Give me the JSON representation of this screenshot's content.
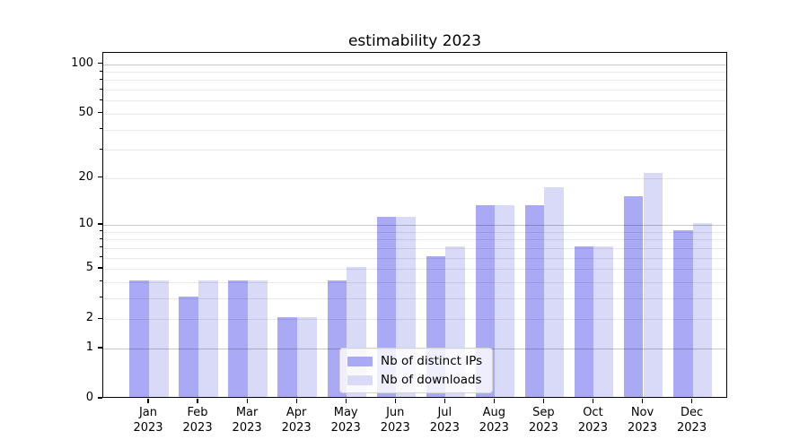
{
  "chart_data": {
    "type": "bar",
    "title": "estimability 2023",
    "categories": [
      "Jan 2023",
      "Feb 2023",
      "Mar 2023",
      "Apr 2023",
      "May 2023",
      "Jun 2023",
      "Jul 2023",
      "Aug 2023",
      "Sep 2023",
      "Oct 2023",
      "Nov 2023",
      "Dec 2023"
    ],
    "series": [
      {
        "name": "Nb of distinct IPs",
        "color": "#a9a9f6",
        "values": [
          4,
          3,
          4,
          2,
          4,
          11,
          6,
          13,
          13,
          7,
          15,
          9
        ]
      },
      {
        "name": "Nb of downloads",
        "color": "#d9d9f8",
        "values": [
          4,
          4,
          4,
          2,
          5,
          11,
          7,
          13,
          17,
          7,
          21,
          10
        ]
      }
    ],
    "xlabel": "",
    "ylabel": "",
    "yscale": "log1p",
    "ylim": [
      0,
      117
    ],
    "yticks": [
      0,
      1,
      2,
      5,
      10,
      20,
      50,
      100
    ],
    "minor_gridlines": [
      3,
      4,
      6,
      7,
      8,
      9,
      30,
      40,
      60,
      70,
      80,
      90
    ],
    "grid": true,
    "grid_over_bars": true,
    "legend_position": "lower center",
    "colors": {
      "major_grid": "#c9c9c9",
      "minor_grid": "#ececec",
      "axis": "#000000",
      "background": "#ffffff"
    }
  }
}
